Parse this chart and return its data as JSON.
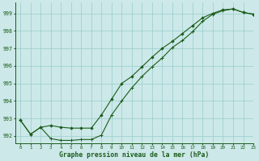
{
  "title": "Graphe pression niveau de la mer (hPa)",
  "bg_color": "#cce8e8",
  "grid_color": "#99cccc",
  "line_color": "#1a5c1a",
  "xlim": [
    -0.5,
    23
  ],
  "ylim": [
    991.6,
    999.6
  ],
  "yticks": [
    992,
    993,
    994,
    995,
    996,
    997,
    998,
    999
  ],
  "xticks": [
    0,
    1,
    2,
    3,
    4,
    5,
    6,
    7,
    8,
    9,
    10,
    11,
    12,
    13,
    14,
    15,
    16,
    17,
    18,
    19,
    20,
    21,
    22,
    23
  ],
  "hours": [
    0,
    1,
    2,
    3,
    4,
    5,
    6,
    7,
    8,
    9,
    10,
    11,
    12,
    13,
    14,
    15,
    16,
    17,
    18,
    19,
    20,
    21,
    22,
    23
  ],
  "line1": [
    992.9,
    992.1,
    992.5,
    991.85,
    991.75,
    991.75,
    991.8,
    991.8,
    992.05,
    993.2,
    994.0,
    994.75,
    995.4,
    995.95,
    996.45,
    997.05,
    997.45,
    997.95,
    998.55,
    998.95,
    999.15,
    999.25,
    999.05,
    998.95
  ],
  "line2": [
    992.9,
    992.1,
    992.5,
    992.6,
    992.5,
    992.45,
    992.45,
    992.45,
    993.2,
    994.1,
    995.0,
    995.4,
    995.95,
    996.5,
    997.0,
    997.4,
    997.85,
    998.3,
    998.75,
    999.0,
    999.2,
    999.25,
    999.05,
    998.95
  ]
}
